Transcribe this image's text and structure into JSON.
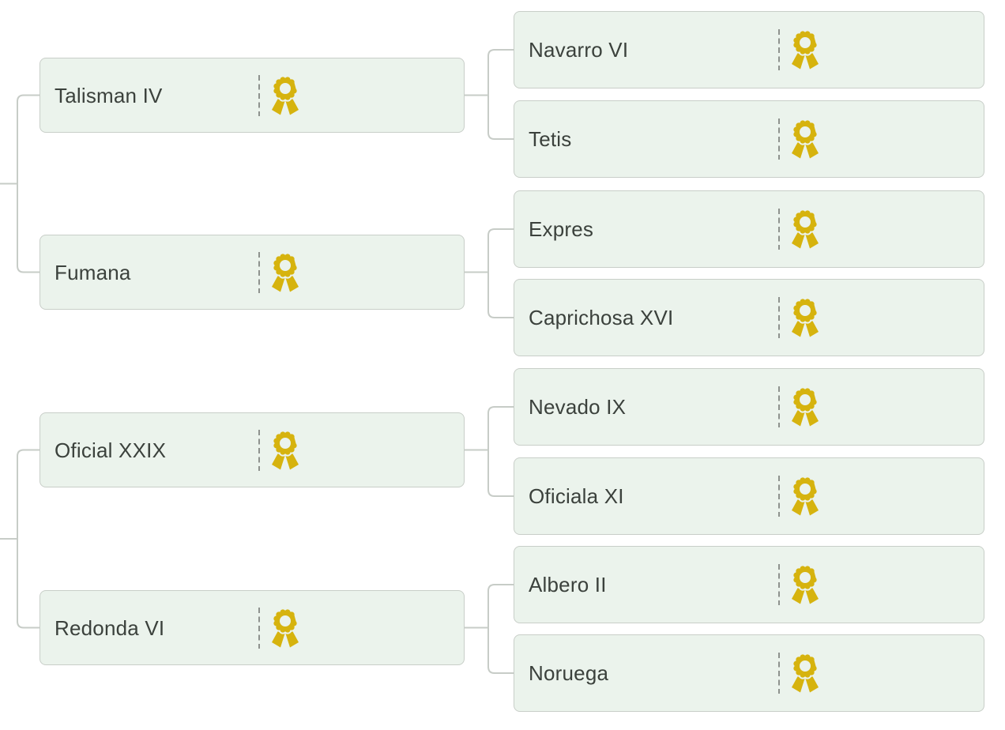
{
  "colors": {
    "page_bg": "#ffffff",
    "card_bg": "#ebf3ec",
    "card_border": "#c8cec8",
    "connector_line": "#c7ccc7",
    "name_text": "#3b413c",
    "award_gold": "#d6b30e",
    "divider_gray": "#8e928e"
  },
  "icon": {
    "name": "award-ribbon-icon"
  },
  "nodes": [
    {
      "id": "talisman-iv",
      "label": "Talisman IV",
      "generation": 0,
      "row": 0
    },
    {
      "id": "fumana",
      "label": "Fumana",
      "generation": 0,
      "row": 1
    },
    {
      "id": "oficial-xxix",
      "label": "Oficial XXIX",
      "generation": 0,
      "row": 2
    },
    {
      "id": "redonda-vi",
      "label": "Redonda VI",
      "generation": 0,
      "row": 3
    },
    {
      "id": "navarro-vi",
      "label": "Navarro VI",
      "generation": 1,
      "row": 0
    },
    {
      "id": "tetis",
      "label": "Tetis",
      "generation": 1,
      "row": 1
    },
    {
      "id": "expres",
      "label": "Expres",
      "generation": 1,
      "row": 2
    },
    {
      "id": "caprichosa-xvi",
      "label": "Caprichosa XVI",
      "generation": 1,
      "row": 3
    },
    {
      "id": "nevado-ix",
      "label": "Nevado IX",
      "generation": 1,
      "row": 4
    },
    {
      "id": "oficiala-xi",
      "label": "Oficiala XI",
      "generation": 1,
      "row": 5
    },
    {
      "id": "albero-ii",
      "label": "Albero II",
      "generation": 1,
      "row": 6
    },
    {
      "id": "noruega",
      "label": "Noruega",
      "generation": 1,
      "row": 7
    }
  ],
  "links": [
    {
      "parent": "talisman-iv",
      "children": [
        "navarro-vi",
        "tetis"
      ]
    },
    {
      "parent": "fumana",
      "children": [
        "expres",
        "caprichosa-xvi"
      ]
    },
    {
      "parent": "oficial-xxix",
      "children": [
        "nevado-ix",
        "oficiala-xi"
      ]
    },
    {
      "parent": "redonda-vi",
      "children": [
        "albero-ii",
        "noruega"
      ]
    }
  ],
  "offscreen_links": [
    {
      "children": [
        "talisman-iv",
        "fumana"
      ]
    },
    {
      "children": [
        "oficial-xxix",
        "redonda-vi"
      ]
    }
  ]
}
